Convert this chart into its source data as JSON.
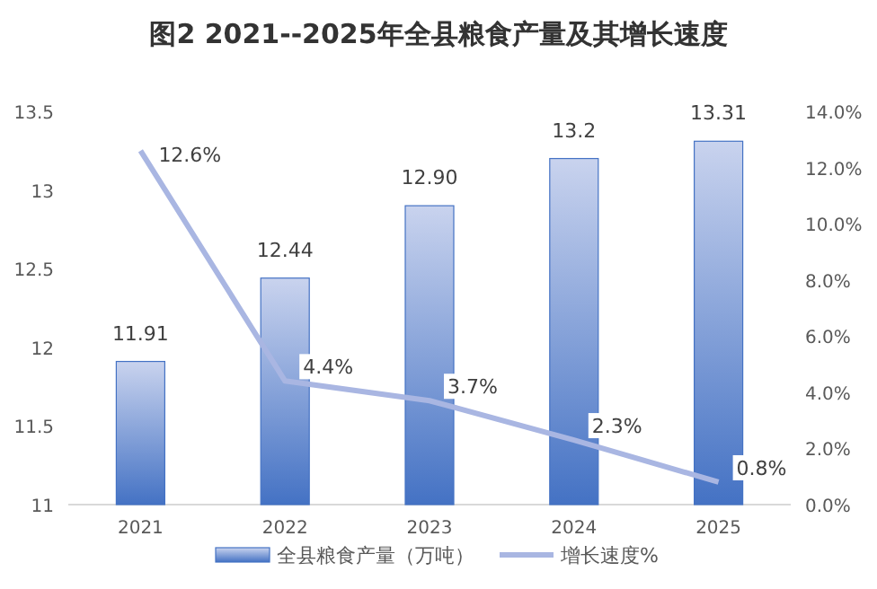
{
  "chart_data": {
    "type": "bar",
    "title": "图2  2021--2025年全县粮食产量及其增长速度",
    "categories": [
      "2021",
      "2022",
      "2023",
      "2024",
      "2025"
    ],
    "series": [
      {
        "name": "全县粮食产量（万吨）",
        "color": "#4472c4",
        "values": [
          11.91,
          12.44,
          12.9,
          13.2,
          13.31
        ],
        "value_labels": [
          "11.91",
          "12.44",
          "12.90",
          "13.2",
          "13.31"
        ]
      },
      {
        "name": "增长速度%",
        "type": "line",
        "axis": "y2",
        "color": "#a9b6e2",
        "values": [
          12.6,
          4.4,
          3.7,
          2.3,
          0.8
        ],
        "value_labels": [
          "12.6%",
          "4.4%",
          "3.7%",
          "2.3%",
          "0.8%"
        ]
      }
    ],
    "ylim": [
      11,
      13.5
    ],
    "yticks": [
      11,
      11.5,
      12,
      12.5,
      13,
      13.5
    ],
    "y2lim": [
      0,
      14
    ],
    "y2ticks": [
      {
        "value": 0,
        "label": "0.0%"
      },
      {
        "value": 2,
        "label": "2.0%"
      },
      {
        "value": 4,
        "label": "4.0%"
      },
      {
        "value": 6,
        "label": "6.0%"
      },
      {
        "value": 8,
        "label": "8.0%"
      },
      {
        "value": 10,
        "label": "10.0%"
      },
      {
        "value": 12,
        "label": "12.0%"
      },
      {
        "value": 14,
        "label": "14.0%"
      }
    ],
    "legend": "bottom",
    "grid": false,
    "marker": "none",
    "line_style": "solid"
  }
}
